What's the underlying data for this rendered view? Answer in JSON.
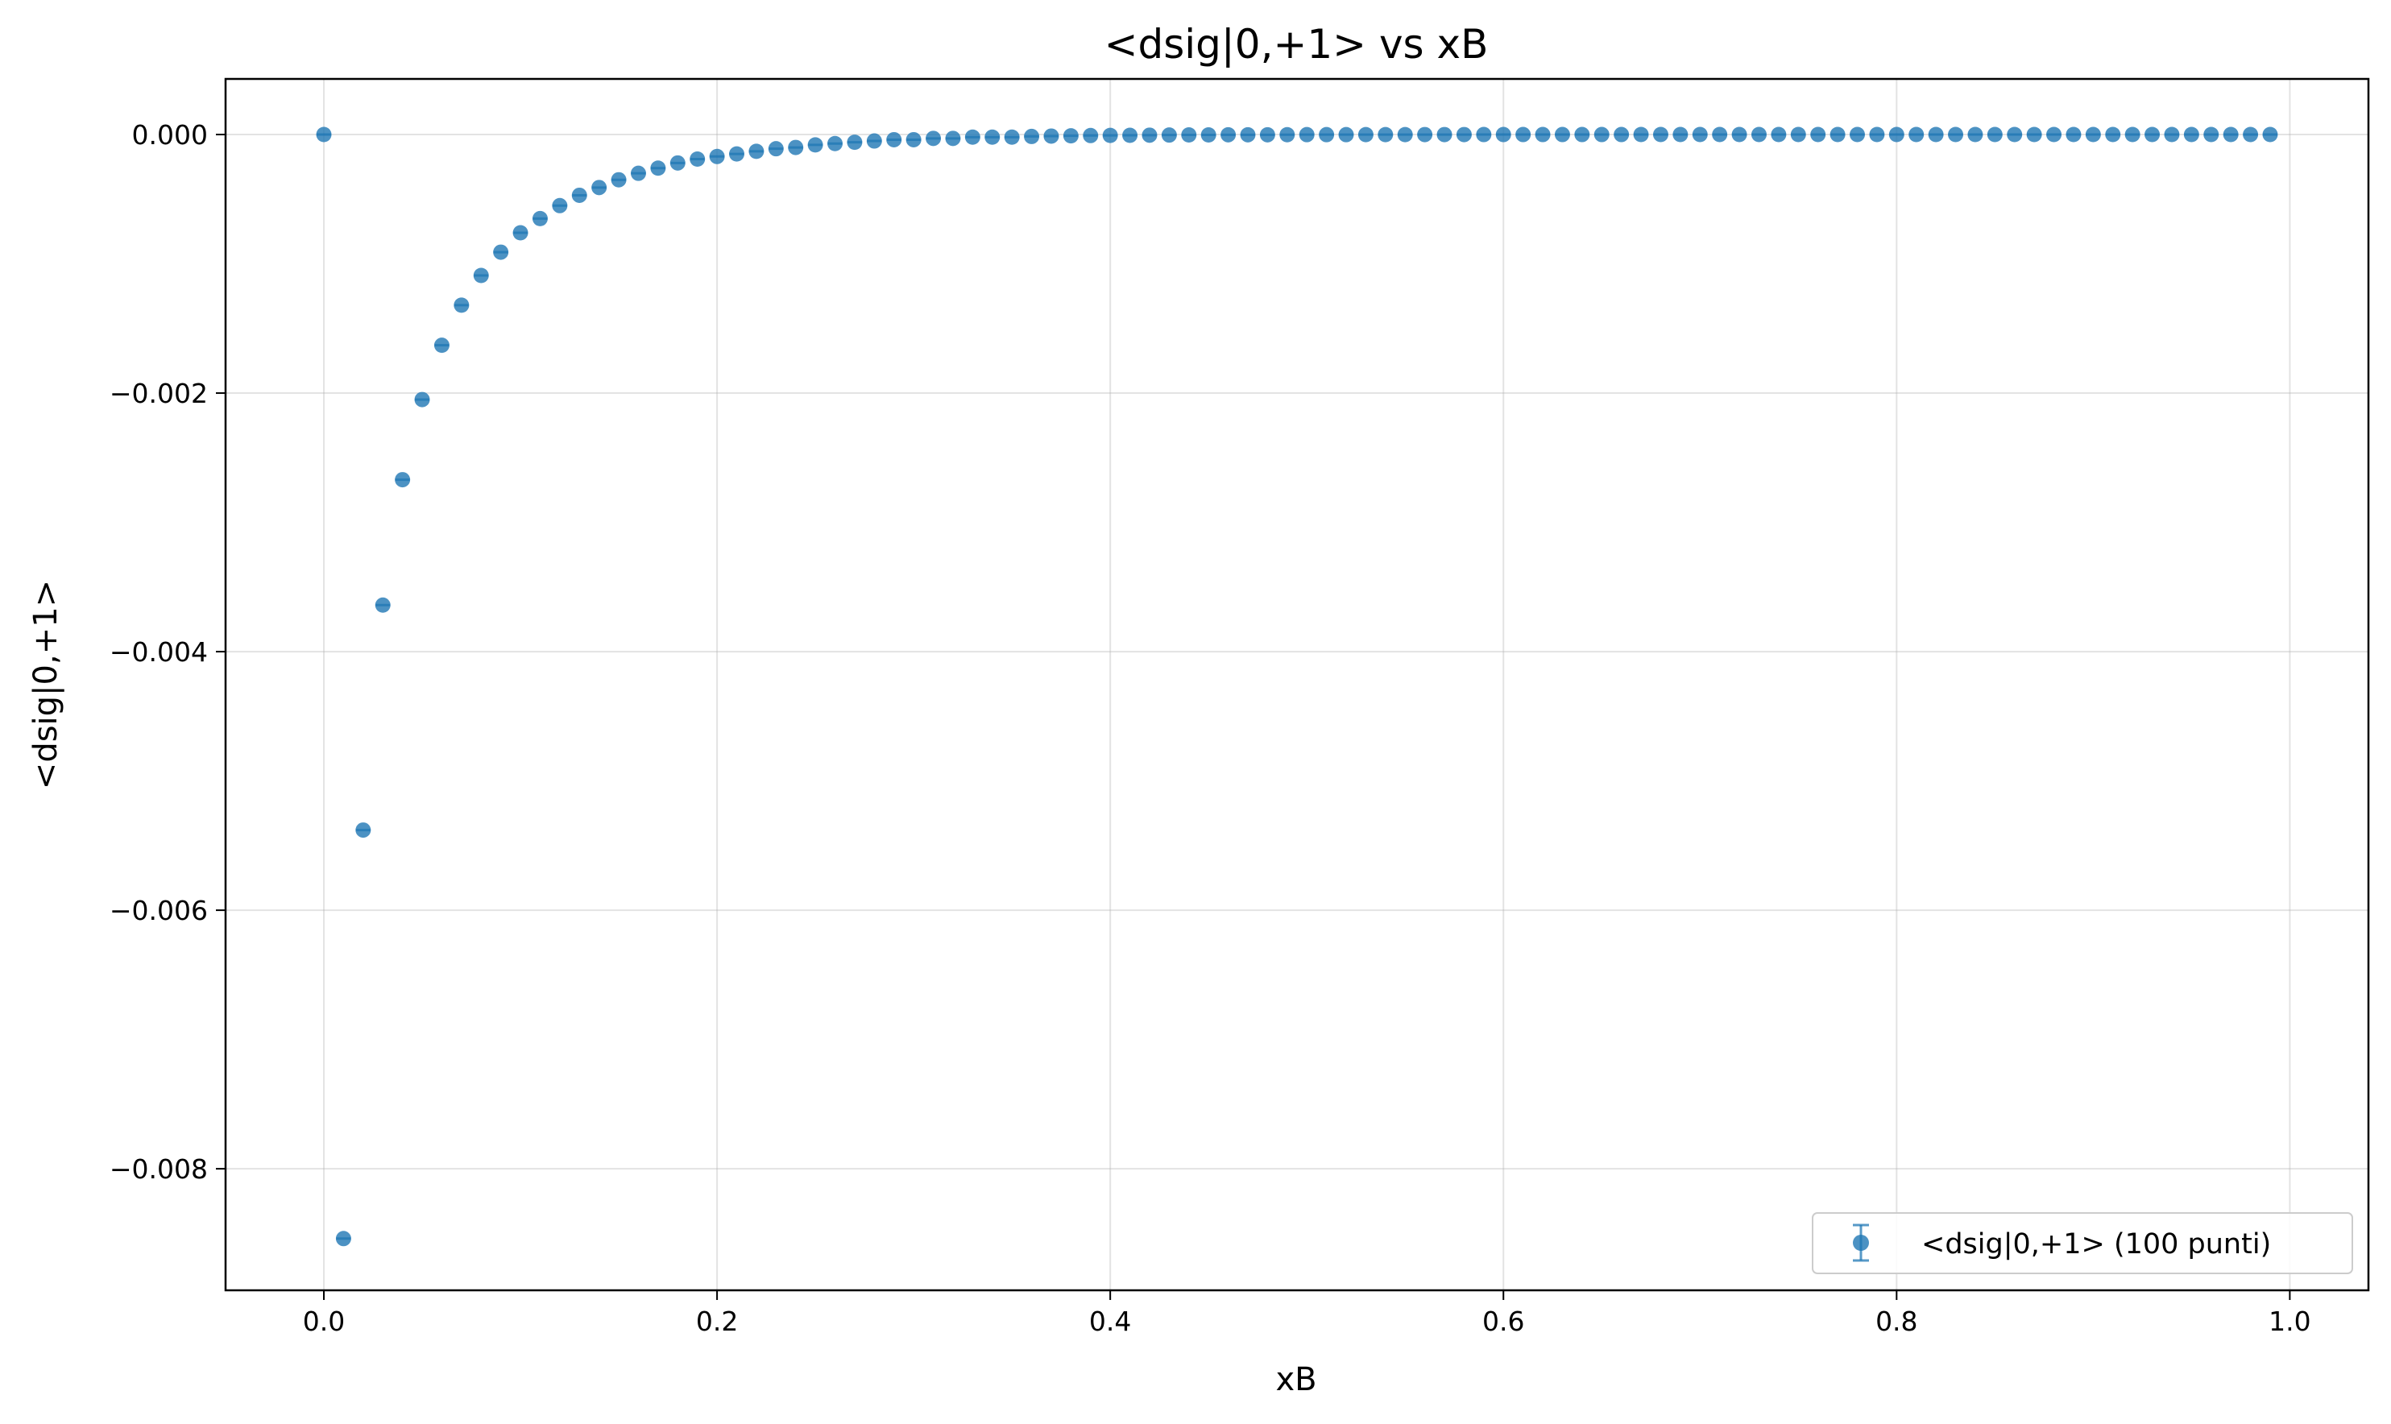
{
  "chart_data": {
    "type": "scatter",
    "title": "<dsig|0,+1> vs xB",
    "xlabel": "xB",
    "ylabel": "<dsig|0,+1>",
    "xlim": [
      -0.05,
      1.04
    ],
    "ylim": [
      -0.00894,
      0.00043
    ],
    "xticks": [
      0.0,
      0.2,
      0.4,
      0.6,
      0.8,
      1.0
    ],
    "xtick_labels": [
      "0.0",
      "0.2",
      "0.4",
      "0.6",
      "0.8",
      "1.0"
    ],
    "yticks": [
      0.0,
      -0.002,
      -0.004,
      -0.006,
      -0.008
    ],
    "ytick_labels": [
      "0.000",
      "−0.002",
      "−0.004",
      "−0.006",
      "−0.008"
    ],
    "grid": true,
    "legend_position": "lower-right",
    "series": [
      {
        "name": "<dsig|0,+1> (100 punti)",
        "color": "#1f77b4",
        "marker": "circle",
        "error_bars": true,
        "x": [
          0.0,
          0.01,
          0.02,
          0.03,
          0.04,
          0.05,
          0.06,
          0.07,
          0.08,
          0.09,
          0.1,
          0.11,
          0.12,
          0.13,
          0.14,
          0.15,
          0.16,
          0.17,
          0.18,
          0.19,
          0.2,
          0.21,
          0.22,
          0.23,
          0.24,
          0.25,
          0.26,
          0.27,
          0.28,
          0.29,
          0.3,
          0.31,
          0.32,
          0.33,
          0.34,
          0.35,
          0.36,
          0.37,
          0.38,
          0.39,
          0.4,
          0.41,
          0.42,
          0.43,
          0.44,
          0.45,
          0.46,
          0.47,
          0.48,
          0.49,
          0.5,
          0.51,
          0.52,
          0.53,
          0.54,
          0.55,
          0.56,
          0.57,
          0.58,
          0.59,
          0.6,
          0.61,
          0.62,
          0.63,
          0.64,
          0.65,
          0.66,
          0.67,
          0.68,
          0.69,
          0.7,
          0.71,
          0.72,
          0.73,
          0.74,
          0.75,
          0.76,
          0.77,
          0.78,
          0.79,
          0.8,
          0.81,
          0.82,
          0.83,
          0.84,
          0.85,
          0.86,
          0.87,
          0.88,
          0.89,
          0.9,
          0.91,
          0.92,
          0.93,
          0.94,
          0.95,
          0.96,
          0.97,
          0.98,
          0.99
        ],
        "y": [
          0.0,
          -0.00854,
          -0.00538,
          -0.00364,
          -0.00267,
          -0.00205,
          -0.00163,
          -0.00132,
          -0.00109,
          -0.00091,
          -0.00076,
          -0.00065,
          -0.00055,
          -0.00047,
          -0.00041,
          -0.00035,
          -0.0003,
          -0.00026,
          -0.00022,
          -0.00019,
          -0.00017,
          -0.00015,
          -0.00013,
          -0.00011,
          -0.0001,
          -8e-05,
          -7e-05,
          -6e-05,
          -5e-05,
          -4e-05,
          -4e-05,
          -3e-05,
          -3e-05,
          -2e-05,
          -2e-05,
          -2e-05,
          -1.5e-05,
          -1.2e-05,
          -1e-05,
          -8e-06,
          -7e-06,
          -6e-06,
          -5e-06,
          -4e-06,
          -3e-06,
          -3e-06,
          -2e-06,
          -2e-06,
          -2e-06,
          -1.5e-06,
          -1e-06,
          -1e-06,
          -1e-06,
          -8e-07,
          -6e-07,
          -5e-07,
          -4e-07,
          -3e-07,
          -3e-07,
          -2e-07,
          -2e-07,
          -2e-07,
          -1e-07,
          -1e-07,
          -1e-07,
          -1e-07,
          -1e-07,
          0.0,
          0.0,
          0.0,
          0.0,
          0.0,
          0.0,
          0.0,
          0.0,
          0.0,
          0.0,
          0.0,
          0.0,
          0.0,
          0.0,
          0.0,
          0.0,
          0.0,
          0.0,
          0.0,
          0.0,
          0.0,
          0.0,
          0.0,
          0.0,
          0.0,
          0.0,
          0.0,
          0.0,
          0.0,
          0.0,
          0.0,
          0.0,
          0.0
        ]
      }
    ]
  }
}
